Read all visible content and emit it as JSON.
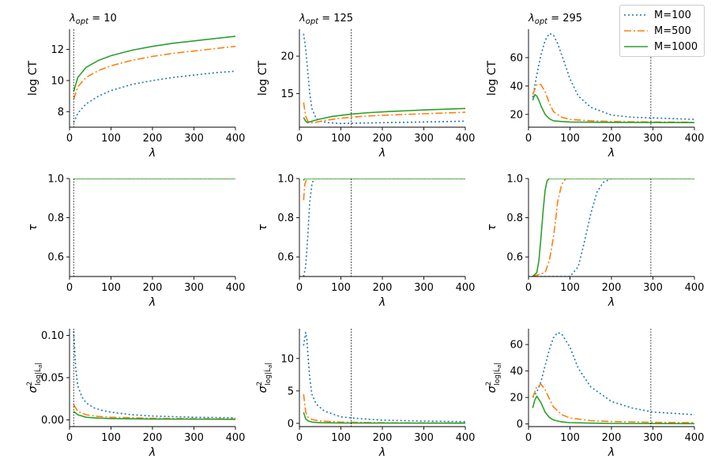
{
  "legend": {
    "entries": [
      {
        "label": "M=100",
        "color": "#1f77b4",
        "dash": "2,3"
      },
      {
        "label": "M=500",
        "color": "#ff7f0e",
        "dash": "9,3,2,3"
      },
      {
        "label": "M=1000",
        "color": "#2ca02c",
        "dash": ""
      }
    ]
  },
  "chart_data": [
    {
      "type": "line",
      "panel": "r0c0",
      "title": "λopt = 10",
      "lambda_opt": 10,
      "ylabel": "log CT",
      "xlabel": "λ",
      "xlim": [
        0,
        400
      ],
      "ylim": [
        7.0,
        13.3
      ],
      "xticks": [
        0,
        100,
        200,
        300,
        400
      ],
      "yticks": [
        8,
        10,
        12
      ],
      "ytick_labels": [
        "8",
        "10",
        "12"
      ],
      "series": [
        {
          "name": "M=100",
          "x": [
            10,
            20,
            40,
            70,
            100,
            150,
            200,
            250,
            300,
            350,
            400
          ],
          "values": [
            7.3,
            7.9,
            8.5,
            9.0,
            9.35,
            9.75,
            10.0,
            10.2,
            10.35,
            10.5,
            10.6
          ]
        },
        {
          "name": "M=500",
          "x": [
            10,
            20,
            40,
            70,
            100,
            150,
            200,
            250,
            300,
            350,
            400
          ],
          "values": [
            8.8,
            9.6,
            10.2,
            10.65,
            10.95,
            11.3,
            11.55,
            11.75,
            11.9,
            12.05,
            12.2
          ]
        },
        {
          "name": "M=1000",
          "x": [
            10,
            20,
            40,
            70,
            100,
            150,
            200,
            250,
            300,
            350,
            400
          ],
          "values": [
            9.3,
            10.2,
            10.85,
            11.3,
            11.6,
            11.95,
            12.2,
            12.4,
            12.55,
            12.7,
            12.85
          ]
        }
      ]
    },
    {
      "type": "line",
      "panel": "r0c1",
      "title": "λopt = 125",
      "lambda_opt": 125,
      "ylabel": "log CT",
      "xlabel": "λ",
      "xlim": [
        0,
        400
      ],
      "ylim": [
        10.5,
        23.6
      ],
      "xticks": [
        0,
        100,
        200,
        300,
        400
      ],
      "yticks": [
        15,
        20
      ],
      "ytick_labels": [
        "15",
        "20"
      ],
      "series": [
        {
          "name": "M=100",
          "x": [
            10,
            15,
            20,
            25,
            30,
            40,
            50,
            70,
            100,
            150,
            200,
            300,
            400
          ],
          "values": [
            23,
            21,
            18,
            15,
            13,
            11.7,
            11.3,
            11.1,
            11.0,
            11.05,
            11.1,
            11.2,
            11.3
          ]
        },
        {
          "name": "M=500",
          "x": [
            10,
            15,
            20,
            30,
            40,
            60,
            100,
            150,
            200,
            300,
            400
          ],
          "values": [
            13.8,
            12.0,
            11.3,
            11.1,
            11.15,
            11.4,
            11.7,
            11.95,
            12.1,
            12.3,
            12.5
          ]
        },
        {
          "name": "M=1000",
          "x": [
            10,
            15,
            20,
            30,
            50,
            80,
            125,
            170,
            220,
            300,
            400
          ],
          "values": [
            11.8,
            11.3,
            11.1,
            11.3,
            11.6,
            11.95,
            12.25,
            12.45,
            12.6,
            12.8,
            13.0
          ]
        }
      ]
    },
    {
      "type": "line",
      "panel": "r0c2",
      "title": "λopt = 295",
      "lambda_opt": 295,
      "ylabel": "log CT",
      "xlabel": "λ",
      "xlim": [
        0,
        400
      ],
      "ylim": [
        11,
        80
      ],
      "xticks": [
        0,
        100,
        200,
        300,
        400
      ],
      "yticks": [
        20,
        40,
        60
      ],
      "ytick_labels": [
        "20",
        "40",
        "60"
      ],
      "series": [
        {
          "name": "M=100",
          "x": [
            10,
            20,
            30,
            40,
            50,
            60,
            70,
            80,
            100,
            120,
            150,
            200,
            250,
            300,
            350,
            400
          ],
          "values": [
            32,
            48,
            62,
            72,
            77,
            76,
            70,
            62,
            45,
            33,
            25,
            19.5,
            18,
            17.5,
            17,
            16.5
          ]
        },
        {
          "name": "M=500",
          "x": [
            10,
            20,
            30,
            40,
            50,
            60,
            80,
            100,
            150,
            200,
            300,
            400
          ],
          "values": [
            34,
            41,
            41,
            36,
            28,
            22,
            18,
            16.5,
            15.5,
            15,
            14.7,
            14.5
          ]
        },
        {
          "name": "M=1000",
          "x": [
            10,
            15,
            20,
            25,
            30,
            40,
            50,
            60,
            80,
            100,
            150,
            200,
            300,
            400
          ],
          "values": [
            30,
            34,
            33,
            30,
            26,
            20,
            17,
            15.5,
            15,
            14.7,
            14.5,
            14.4,
            14.3,
            14.2
          ]
        }
      ]
    },
    {
      "type": "line",
      "panel": "r1c0",
      "title": "",
      "lambda_opt": 10,
      "ylabel": "τ",
      "xlabel": "λ",
      "xlim": [
        0,
        400
      ],
      "ylim": [
        0.5,
        1.0
      ],
      "xticks": [
        0,
        100,
        200,
        300,
        400
      ],
      "yticks": [
        0.6,
        0.8,
        1.0
      ],
      "ytick_labels": [
        "0.6",
        "0.8",
        "1.0"
      ],
      "series": [
        {
          "name": "M=100",
          "x": [
            10,
            400
          ],
          "values": [
            1.0,
            1.0
          ]
        },
        {
          "name": "M=500",
          "x": [
            10,
            400
          ],
          "values": [
            1.0,
            1.0
          ]
        },
        {
          "name": "M=1000",
          "x": [
            10,
            400
          ],
          "values": [
            1.0,
            1.0
          ]
        }
      ]
    },
    {
      "type": "line",
      "panel": "r1c1",
      "title": "",
      "lambda_opt": 125,
      "ylabel": "τ",
      "xlabel": "λ",
      "xlim": [
        0,
        400
      ],
      "ylim": [
        0.5,
        1.0
      ],
      "xticks": [
        0,
        100,
        200,
        300,
        400
      ],
      "yticks": [
        0.6,
        0.8,
        1.0
      ],
      "ytick_labels": [
        "0.6",
        "0.8",
        "1.0"
      ],
      "series": [
        {
          "name": "M=100",
          "x": [
            10,
            15,
            20,
            25,
            30,
            35,
            400
          ],
          "values": [
            0.5,
            0.55,
            0.7,
            0.88,
            0.97,
            1.0,
            1.0
          ]
        },
        {
          "name": "M=500",
          "x": [
            10,
            13,
            18,
            400
          ],
          "values": [
            0.89,
            0.97,
            1.0,
            1.0
          ]
        },
        {
          "name": "M=1000",
          "x": [
            10,
            12,
            400
          ],
          "values": [
            0.99,
            1.0,
            1.0
          ]
        }
      ]
    },
    {
      "type": "line",
      "panel": "r1c2",
      "title": "",
      "lambda_opt": 295,
      "ylabel": "τ",
      "xlabel": "λ",
      "xlim": [
        0,
        400
      ],
      "ylim": [
        0.5,
        1.0
      ],
      "xticks": [
        0,
        100,
        200,
        300,
        400
      ],
      "yticks": [
        0.6,
        0.8,
        1.0
      ],
      "ytick_labels": [
        "0.6",
        "0.8",
        "1.0"
      ],
      "series": [
        {
          "name": "M=100",
          "x": [
            10,
            60,
            100,
            120,
            135,
            150,
            165,
            180,
            200,
            400
          ],
          "values": [
            0.5,
            0.5,
            0.5,
            0.55,
            0.68,
            0.82,
            0.93,
            0.98,
            1.0,
            1.0
          ]
        },
        {
          "name": "M=500",
          "x": [
            10,
            40,
            50,
            60,
            65,
            70,
            80,
            90,
            400
          ],
          "values": [
            0.5,
            0.52,
            0.58,
            0.7,
            0.78,
            0.88,
            0.97,
            1.0,
            1.0
          ]
        },
        {
          "name": "M=1000",
          "x": [
            10,
            20,
            25,
            30,
            35,
            40,
            45,
            50,
            400
          ],
          "values": [
            0.5,
            0.52,
            0.58,
            0.7,
            0.83,
            0.94,
            0.99,
            1.0,
            1.0
          ]
        }
      ]
    },
    {
      "type": "line",
      "panel": "r2c0",
      "title": "",
      "lambda_opt": 10,
      "ylabel": "σ²log|Ĺa|",
      "xlabel": "λ",
      "xlim": [
        0,
        400
      ],
      "ylim": [
        -0.008,
        0.108
      ],
      "xticks": [
        0,
        100,
        200,
        300,
        400
      ],
      "yticks": [
        0.0,
        0.05,
        0.1
      ],
      "ytick_labels": [
        "0.00",
        "0.05",
        "0.10"
      ],
      "series": [
        {
          "name": "M=100",
          "x": [
            10,
            15,
            20,
            30,
            40,
            60,
            80,
            100,
            150,
            200,
            300,
            400
          ],
          "values": [
            0.105,
            0.06,
            0.04,
            0.027,
            0.02,
            0.014,
            0.011,
            0.009,
            0.006,
            0.0045,
            0.003,
            0.0025
          ]
        },
        {
          "name": "M=500",
          "x": [
            10,
            20,
            40,
            70,
            100,
            200,
            300,
            400
          ],
          "values": [
            0.018,
            0.01,
            0.006,
            0.004,
            0.003,
            0.0018,
            0.0014,
            0.0012
          ]
        },
        {
          "name": "M=1000",
          "x": [
            10,
            20,
            40,
            70,
            100,
            200,
            300,
            400
          ],
          "values": [
            0.01,
            0.006,
            0.003,
            0.002,
            0.0015,
            0.001,
            0.0008,
            0.0006
          ]
        }
      ]
    },
    {
      "type": "line",
      "panel": "r2c1",
      "title": "",
      "lambda_opt": 125,
      "ylabel": "σ²log|Ĺa|",
      "xlabel": "λ",
      "xlim": [
        0,
        400
      ],
      "ylim": [
        -0.5,
        14.6
      ],
      "xticks": [
        0,
        100,
        200,
        300,
        400
      ],
      "yticks": [
        0,
        5,
        10
      ],
      "ytick_labels": [
        "0",
        "5",
        "10"
      ],
      "series": [
        {
          "name": "M=100",
          "x": [
            10,
            15,
            18,
            20,
            25,
            30,
            40,
            60,
            100,
            150,
            200,
            300,
            400
          ],
          "values": [
            12,
            14,
            13,
            11,
            7,
            4.5,
            3,
            1.9,
            1.0,
            0.7,
            0.5,
            0.35,
            0.25
          ]
        },
        {
          "name": "M=500",
          "x": [
            10,
            15,
            20,
            30,
            50,
            100,
            200,
            400
          ],
          "values": [
            4.5,
            1.8,
            1.0,
            0.6,
            0.35,
            0.2,
            0.1,
            0.05
          ]
        },
        {
          "name": "M=1000",
          "x": [
            10,
            15,
            20,
            30,
            50,
            100,
            400
          ],
          "values": [
            1.7,
            0.7,
            0.4,
            0.2,
            0.1,
            0.05,
            0.02
          ]
        }
      ]
    },
    {
      "type": "line",
      "panel": "r2c2",
      "title": "",
      "lambda_opt": 295,
      "ylabel": "σ²log|Ĺa|",
      "xlabel": "λ",
      "xlim": [
        0,
        400
      ],
      "ylim": [
        -2,
        72
      ],
      "xticks": [
        0,
        100,
        200,
        300,
        400
      ],
      "yticks": [
        0,
        20,
        40,
        60
      ],
      "ytick_labels": [
        "0",
        "20",
        "40",
        "60"
      ],
      "series": [
        {
          "name": "M=100",
          "x": [
            10,
            20,
            30,
            40,
            50,
            60,
            70,
            80,
            100,
            120,
            150,
            200,
            250,
            300,
            350,
            400
          ],
          "values": [
            20,
            24,
            32,
            44,
            56,
            65,
            69,
            68,
            58,
            42,
            28,
            17,
            12,
            9,
            8,
            7
          ]
        },
        {
          "name": "M=500",
          "x": [
            10,
            20,
            30,
            40,
            50,
            60,
            80,
            100,
            150,
            200,
            300,
            400
          ],
          "values": [
            20,
            28,
            30,
            26,
            19,
            13,
            7,
            4.5,
            2.5,
            1.8,
            1.2,
            1.0
          ]
        },
        {
          "name": "M=1000",
          "x": [
            10,
            15,
            20,
            30,
            40,
            50,
            60,
            80,
            100,
            150,
            200,
            400
          ],
          "values": [
            12,
            18,
            21,
            16,
            9,
            5,
            3,
            1.5,
            1,
            0.6,
            0.4,
            0.2
          ]
        }
      ]
    }
  ]
}
